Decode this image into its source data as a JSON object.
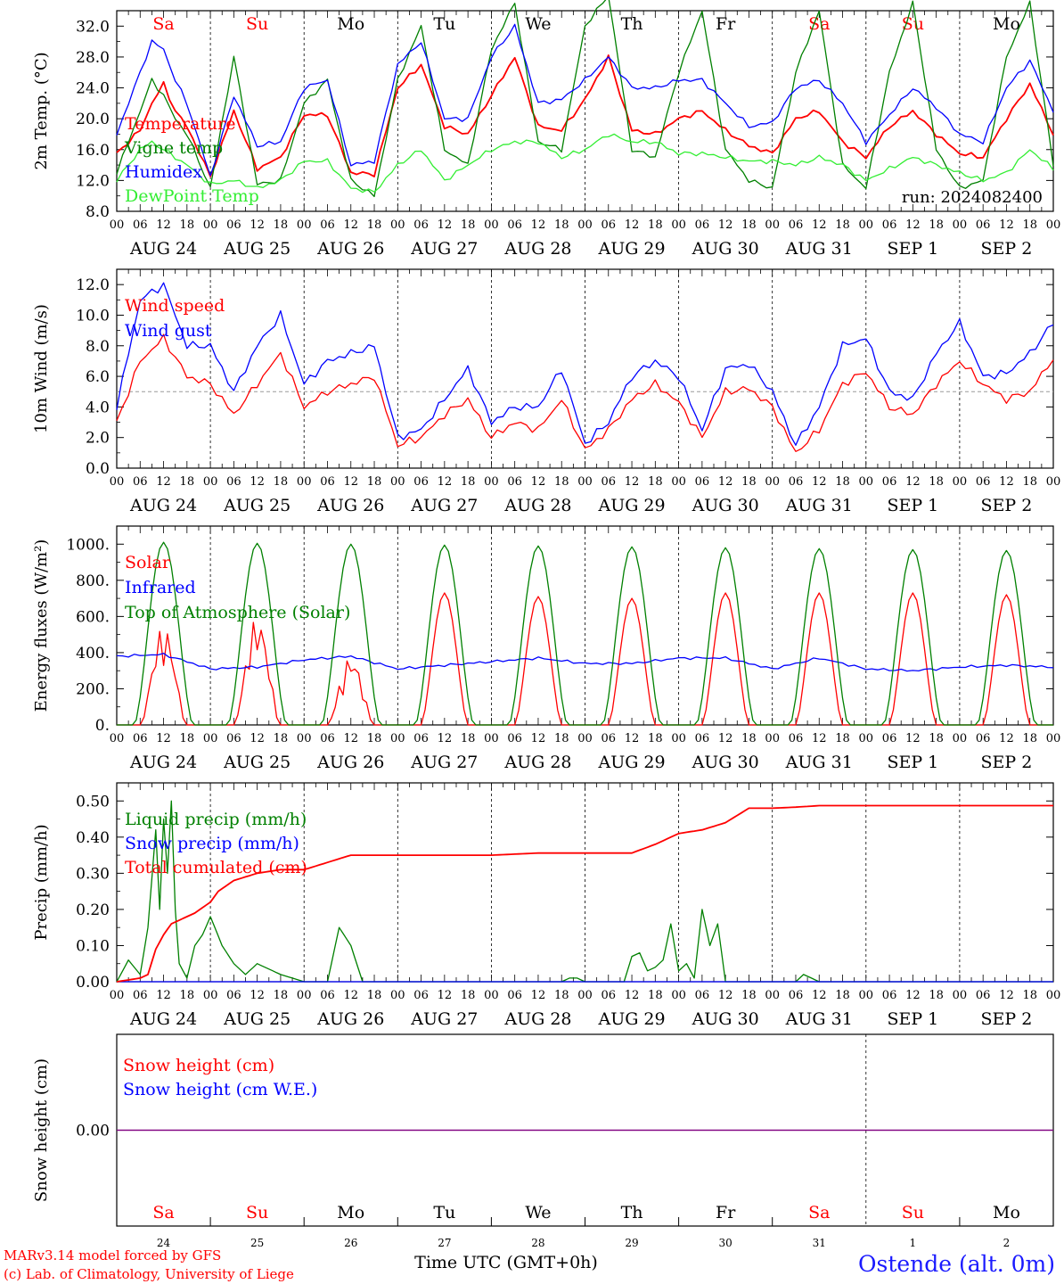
{
  "days": {
    "labels": [
      "AUG 24",
      "AUG 25",
      "AUG 26",
      "AUG 27",
      "AUG 28",
      "AUG 29",
      "AUG 30",
      "AUG 31",
      "SEP  1",
      "SEP  2"
    ],
    "weekdays": [
      "Sa",
      "Su",
      "Mo",
      "Tu",
      "We",
      "Th",
      "Fr",
      "Sa",
      "Su",
      "Mo"
    ],
    "weekend": [
      true,
      true,
      false,
      false,
      false,
      false,
      false,
      true,
      true,
      false
    ],
    "short": [
      "24",
      "25",
      "26",
      "27",
      "28",
      "29",
      "30",
      "31",
      "1",
      "2"
    ],
    "hour_ticks": [
      "00",
      "06",
      "12",
      "18"
    ],
    "end_tick": "00"
  },
  "footer": {
    "model": "MARv3.14 model forced by GFS",
    "lab": "(c) Lab. of Climatology, University of Liege",
    "xlabel": "Time UTC (GMT+0h)",
    "location": "Ostende (alt. 0m)"
  },
  "colors": {
    "red": "#ff0000",
    "blue": "#0000ff",
    "green": "#008000",
    "lightgreen": "#33ee33",
    "purple": "#800080"
  },
  "chart_data": [
    {
      "type": "line",
      "ylabel": "2m Temp. (°C)",
      "ylim": [
        8,
        34
      ],
      "yticks": [
        "8.0",
        "12.0",
        "16.0",
        "20.0",
        "24.0",
        "28.0",
        "32.0"
      ],
      "run_label": "run: 2024082400",
      "legend": [
        "Temperature",
        "Vigne temp",
        "Humidex",
        "DewPoint Temp"
      ],
      "x_hours": [
        0,
        6,
        9,
        12,
        15,
        18,
        24,
        30,
        36,
        42,
        48,
        54,
        60,
        66,
        72,
        78,
        84,
        90,
        96,
        102,
        108,
        114,
        120,
        126,
        132,
        138,
        144,
        150,
        156,
        162,
        168,
        174,
        180,
        186,
        192,
        198,
        204,
        210,
        216,
        222,
        228,
        234,
        240
      ],
      "series": [
        {
          "name": "Temperature",
          "color": "red",
          "values": [
            15.5,
            18.5,
            22,
            24.5,
            21,
            19,
            12.5,
            21,
            13.5,
            15,
            20.5,
            20.5,
            13,
            12.8,
            24,
            27,
            19,
            18,
            23,
            28,
            19,
            18.5,
            22.5,
            28,
            18.5,
            18,
            20,
            21,
            18.5,
            16.5,
            15.5,
            20,
            21,
            17,
            15,
            19,
            21,
            18,
            15.5,
            15,
            20,
            24.5,
            18
          ]
        },
        {
          "name": "Vigne temp",
          "color": "green",
          "values": [
            13,
            21,
            25,
            23,
            20,
            18,
            11,
            28,
            11.5,
            12,
            22,
            25,
            12,
            10,
            25,
            32,
            16,
            14,
            29,
            35,
            17,
            16,
            32,
            36,
            16,
            15,
            26,
            34,
            16,
            12,
            11,
            26,
            34,
            14,
            11,
            26,
            35,
            16,
            11,
            12,
            28,
            35,
            14
          ]
        },
        {
          "name": "Humidex",
          "color": "blue",
          "values": [
            18,
            26,
            30,
            29,
            25,
            22,
            12.5,
            23,
            16.5,
            17,
            24,
            25,
            14,
            14.5,
            27,
            30,
            20,
            20,
            28,
            32,
            22,
            22.5,
            25,
            28,
            24,
            24,
            25,
            25,
            22,
            19,
            19.5,
            24,
            25,
            22,
            17,
            20.5,
            24,
            21.5,
            18,
            17,
            24,
            27.5,
            21
          ]
        },
        {
          "name": "DewPoint Temp",
          "color": "lightgreen",
          "values": [
            12,
            16,
            17,
            16,
            15,
            14,
            11.5,
            12,
            11,
            12,
            14.5,
            14.5,
            11,
            10.5,
            14,
            16,
            12,
            14,
            16,
            17,
            17,
            15,
            16,
            18,
            17,
            17,
            15.5,
            15.5,
            15,
            14.5,
            14.5,
            14,
            15,
            14,
            12,
            13.5,
            15,
            14,
            13,
            12,
            13,
            16,
            13.5
          ]
        }
      ]
    },
    {
      "type": "line",
      "ylabel": "10m Wind (m/s)",
      "ylim": [
        0,
        13
      ],
      "yticks": [
        "0.0",
        "2.0",
        "4.0",
        "6.0",
        "8.0",
        "10.0",
        "12.0"
      ],
      "reference_line": 5,
      "legend": [
        "Wind speed",
        "Wind gust"
      ],
      "x_hours": [
        0,
        6,
        12,
        18,
        24,
        30,
        36,
        42,
        48,
        54,
        60,
        66,
        72,
        78,
        84,
        90,
        96,
        102,
        108,
        114,
        120,
        126,
        132,
        138,
        144,
        150,
        156,
        162,
        168,
        174,
        180,
        186,
        192,
        198,
        204,
        210,
        216,
        222,
        228,
        234,
        240
      ],
      "series": [
        {
          "name": "Wind speed",
          "color": "red",
          "values": [
            3,
            7,
            8.5,
            6,
            5.5,
            3.5,
            5.5,
            7.5,
            4,
            5,
            5.5,
            6,
            1.5,
            2,
            3.5,
            4.5,
            2,
            3,
            2.5,
            4.5,
            1.2,
            2.5,
            4.5,
            5.5,
            4.3,
            2,
            5,
            5.2,
            4,
            1,
            2.5,
            5.5,
            6.3,
            4,
            3.5,
            5.5,
            7,
            5.5,
            4.5,
            5,
            7.2
          ]
        },
        {
          "name": "Wind gust",
          "color": "blue",
          "values": [
            4,
            11,
            12,
            8,
            8,
            5,
            8,
            10,
            5.5,
            7,
            7.5,
            8,
            2,
            2.5,
            4.5,
            6.5,
            3,
            4,
            4,
            6.5,
            1.6,
            3,
            6,
            7,
            6,
            2.5,
            6.5,
            6.8,
            5,
            1.5,
            4,
            8,
            8.5,
            5,
            4.5,
            7.5,
            9.5,
            6,
            6.2,
            7.5,
            9.5
          ]
        }
      ]
    },
    {
      "type": "line",
      "ylabel": "Energy fluxes (W/m²)",
      "ylim": [
        0,
        1100
      ],
      "yticks": [
        "0.",
        "200.",
        "400.",
        "600.",
        "800.",
        "1000."
      ],
      "legend": [
        "Solar",
        "Infrared",
        "Top of Atmosphere (Solar)"
      ],
      "series": [
        {
          "name": "Solar",
          "color": "red",
          "peaks": [
            550,
            600,
            380,
            730,
            710,
            700,
            730,
            730,
            730,
            720
          ]
        },
        {
          "name": "Infrared",
          "color": "blue",
          "x_hours": [
            0,
            12,
            24,
            36,
            48,
            60,
            72,
            84,
            96,
            108,
            120,
            132,
            144,
            156,
            168,
            180,
            192,
            204,
            216,
            228,
            240
          ],
          "values": [
            380,
            390,
            310,
            320,
            360,
            380,
            310,
            330,
            350,
            370,
            340,
            340,
            370,
            370,
            310,
            370,
            310,
            300,
            320,
            330,
            320
          ]
        },
        {
          "name": "Top of Atmosphere (Solar)",
          "color": "green",
          "peaks": [
            1010,
            1005,
            1000,
            995,
            990,
            985,
            980,
            975,
            970,
            965
          ]
        }
      ]
    },
    {
      "type": "line",
      "ylabel": "Precip (mm/h)",
      "ylim": [
        0,
        0.55
      ],
      "yticks": [
        "0.00",
        "0.10",
        "0.20",
        "0.30",
        "0.40",
        "0.50"
      ],
      "legend": [
        "Liquid precip (mm/h)",
        "Snow precip (mm/h)",
        "Total cumulated (cm)"
      ],
      "series": [
        {
          "name": "Liquid precip (mm/h)",
          "color": "green",
          "x_hours": [
            0,
            3,
            6,
            8,
            10,
            11,
            12,
            13,
            14,
            15,
            16,
            18,
            20,
            22,
            24,
            27,
            30,
            33,
            36,
            42,
            48,
            54,
            57,
            60,
            63,
            66,
            72,
            114,
            116,
            118,
            120,
            130,
            132,
            134,
            136,
            138,
            140,
            142,
            144,
            146,
            148,
            150,
            152,
            154,
            156,
            160,
            168,
            174,
            176,
            178,
            180,
            240
          ],
          "values": [
            0,
            0.06,
            0.02,
            0.15,
            0.42,
            0.2,
            0.45,
            0.3,
            0.5,
            0.2,
            0.05,
            0.01,
            0.1,
            0.13,
            0.18,
            0.1,
            0.05,
            0.02,
            0.05,
            0.02,
            0,
            0,
            0.15,
            0.1,
            0,
            0,
            0,
            0,
            0.01,
            0.01,
            0,
            0,
            0.07,
            0.08,
            0.03,
            0.04,
            0.06,
            0.16,
            0.03,
            0.05,
            0.01,
            0.2,
            0.1,
            0.16,
            0,
            0,
            0,
            0,
            0.02,
            0.01,
            0,
            0
          ]
        },
        {
          "name": "Snow precip (mm/h)",
          "color": "blue",
          "values": [
            0
          ]
        },
        {
          "name": "Total cumulated (cm)",
          "color": "red",
          "x_hours": [
            0,
            6,
            8,
            10,
            12,
            14,
            16,
            18,
            20,
            24,
            26,
            30,
            36,
            42,
            48,
            54,
            60,
            66,
            72,
            96,
            108,
            120,
            132,
            138,
            144,
            150,
            156,
            162,
            168,
            174,
            180,
            240
          ],
          "values": [
            0,
            0.01,
            0.02,
            0.09,
            0.13,
            0.16,
            0.17,
            0.18,
            0.19,
            0.22,
            0.25,
            0.28,
            0.3,
            0.31,
            0.31,
            0.33,
            0.35,
            0.35,
            0.35,
            0.35,
            0.356,
            0.356,
            0.356,
            0.38,
            0.41,
            0.42,
            0.44,
            0.48,
            0.48,
            0.483,
            0.487,
            0.487
          ]
        }
      ]
    },
    {
      "type": "line",
      "ylabel": "Snow height (cm)",
      "yticks": [
        "0.00"
      ],
      "legend": [
        "Snow height (cm)",
        "Snow height (cm W.E.)"
      ],
      "series": [
        {
          "name": "Snow height (cm)",
          "color": "red",
          "values": [
            0,
            0
          ]
        },
        {
          "name": "Snow height (cm W.E.)",
          "color": "blue",
          "values": [
            0,
            0
          ]
        }
      ]
    }
  ]
}
